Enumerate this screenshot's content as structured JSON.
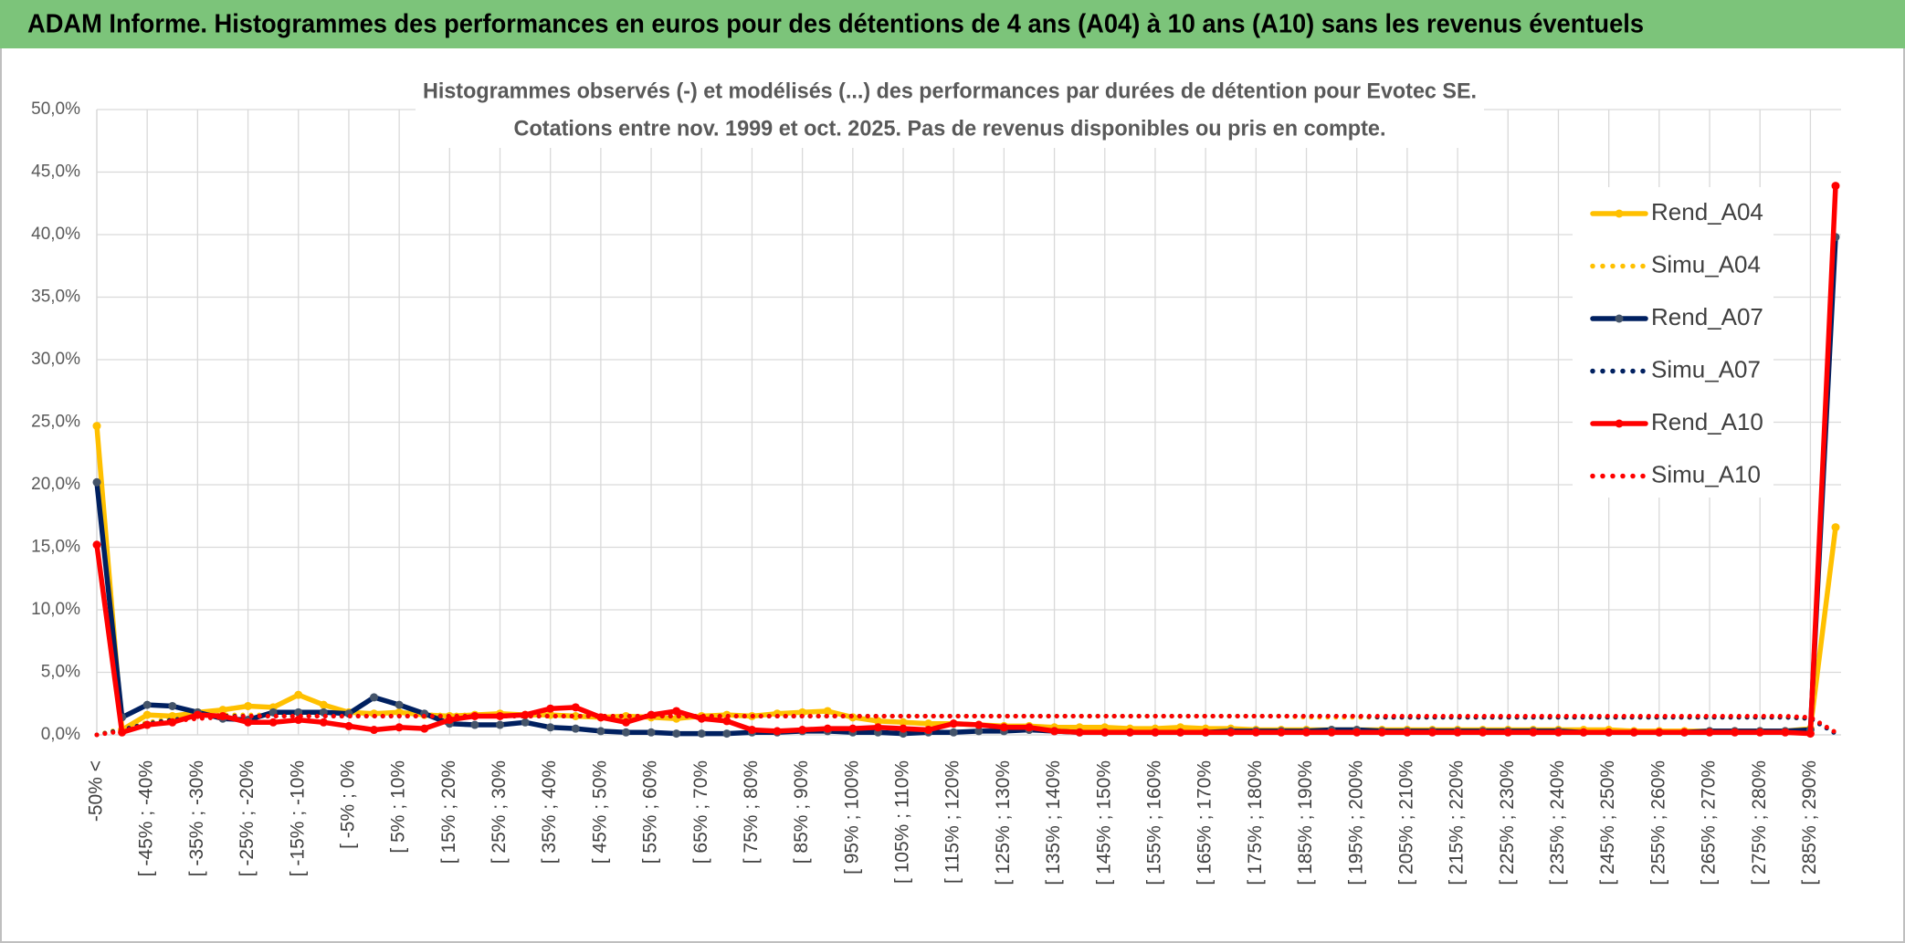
{
  "header": {
    "title": "ADAM Informe. Histogrammes des performances en euros pour des détentions de 4 ans (A04) à 10 ans (A10) sans les revenus éventuels"
  },
  "chart_data": {
    "type": "line",
    "title": "Histogrammes observés (-) et modélisés (...) des performances par durées de détention pour Evotec SE.",
    "subtitle": "Cotations entre nov. 1999 et oct. 2025. Pas de revenus disponibles ou pris en compte.",
    "categories": [
      "-50% <",
      null,
      "[ -45% ; -40%",
      null,
      "[ -35% ; -30%",
      null,
      "[ -25% ; -20%",
      null,
      "[ -15% ; -10%",
      null,
      "[ -5% ; 0%",
      null,
      "[ 5% ; 10%",
      null,
      "[ 15% ; 20%",
      null,
      "[ 25% ; 30%",
      null,
      "[ 35% ; 40%",
      null,
      "[ 45% ; 50%",
      null,
      "[ 55% ; 60%",
      null,
      "[ 65% ; 70%",
      null,
      "[ 75% ; 80%",
      null,
      "[ 85% ; 90%",
      null,
      "[ 95% ; 100%",
      null,
      "[ 105% ; 110%",
      null,
      "[ 115% ; 120%",
      null,
      "[ 125% ; 130%",
      null,
      "[ 135% ; 140%",
      null,
      "[ 145% ; 150%",
      null,
      "[ 155% ; 160%",
      null,
      "[ 165% ; 170%",
      null,
      "[ 175% ; 180%",
      null,
      "[ 185% ; 190%",
      null,
      "[ 195% ; 200%",
      null,
      "[ 205% ; 210%",
      null,
      "[ 215% ; 220%",
      null,
      "[ 225% ; 230%",
      null,
      "[ 235% ; 240%",
      null,
      "[ 245% ; 250%",
      null,
      "[ 255% ; 260%",
      null,
      "[ 265% ; 270%",
      null,
      "[ 275% ; 280%",
      null,
      "[ 285% ; 290%",
      null
    ],
    "series": [
      {
        "name": "Rend_A04",
        "color": "#FFC000",
        "style": "solid",
        "values": [
          24.7,
          0.4,
          1.6,
          1.5,
          1.8,
          2.0,
          2.3,
          2.2,
          3.2,
          2.4,
          1.8,
          1.7,
          1.8,
          1.6,
          1.5,
          1.6,
          1.7,
          1.6,
          1.6,
          1.5,
          1.4,
          1.5,
          1.4,
          1.3,
          1.5,
          1.6,
          1.5,
          1.7,
          1.8,
          1.9,
          1.4,
          1.1,
          1.0,
          0.9,
          0.9,
          0.8,
          0.7,
          0.7,
          0.6,
          0.6,
          0.6,
          0.5,
          0.5,
          0.6,
          0.5,
          0.5,
          0.4,
          0.4,
          0.4,
          0.4,
          0.4,
          0.4,
          0.4,
          0.4,
          0.4,
          0.4,
          0.4,
          0.4,
          0.4,
          0.4,
          0.4,
          0.3,
          0.3,
          0.3,
          0.3,
          0.3,
          0.3,
          0.3,
          0.5,
          16.6
        ]
      },
      {
        "name": "Simu_A04",
        "color": "#FFC000",
        "style": "dotted",
        "values": [
          0.0,
          0.5,
          1.0,
          1.3,
          1.5,
          1.6,
          1.6,
          1.6,
          1.6,
          1.6,
          1.6,
          1.6,
          1.6,
          1.6,
          1.6,
          1.6,
          1.6,
          1.5,
          1.5,
          1.5,
          1.5,
          1.5,
          1.5,
          1.5,
          1.5,
          1.5,
          1.5,
          1.5,
          1.5,
          1.5,
          1.5,
          1.5,
          1.5,
          1.5,
          1.5,
          1.5,
          1.5,
          1.5,
          1.5,
          1.5,
          1.5,
          1.5,
          1.5,
          1.5,
          1.5,
          1.5,
          1.5,
          1.5,
          1.4,
          1.4,
          1.4,
          1.4,
          1.4,
          1.4,
          1.4,
          1.4,
          1.4,
          1.4,
          1.4,
          1.4,
          1.4,
          1.4,
          1.4,
          1.4,
          1.4,
          1.4,
          1.4,
          1.4,
          1.3,
          0.2
        ]
      },
      {
        "name": "Rend_A07",
        "color": "#002060",
        "marker": "#44546A",
        "style": "solid",
        "values": [
          20.2,
          1.4,
          2.4,
          2.3,
          1.8,
          1.3,
          1.2,
          1.8,
          1.8,
          1.8,
          1.7,
          3.0,
          2.4,
          1.7,
          0.9,
          0.8,
          0.8,
          1.0,
          0.6,
          0.5,
          0.3,
          0.2,
          0.2,
          0.1,
          0.1,
          0.1,
          0.2,
          0.2,
          0.3,
          0.3,
          0.2,
          0.2,
          0.1,
          0.2,
          0.2,
          0.3,
          0.3,
          0.4,
          0.3,
          0.2,
          0.2,
          0.2,
          0.2,
          0.2,
          0.2,
          0.3,
          0.3,
          0.3,
          0.3,
          0.4,
          0.4,
          0.3,
          0.3,
          0.3,
          0.3,
          0.3,
          0.3,
          0.3,
          0.3,
          0.2,
          0.2,
          0.2,
          0.2,
          0.2,
          0.3,
          0.3,
          0.3,
          0.3,
          0.4,
          39.8
        ]
      },
      {
        "name": "Simu_A07",
        "color": "#002060",
        "style": "dotted",
        "values": [
          0.0,
          0.4,
          0.9,
          1.2,
          1.4,
          1.5,
          1.5,
          1.5,
          1.5,
          1.5,
          1.5,
          1.5,
          1.5,
          1.5,
          1.5,
          1.5,
          1.5,
          1.5,
          1.5,
          1.5,
          1.5,
          1.5,
          1.5,
          1.5,
          1.5,
          1.5,
          1.5,
          1.5,
          1.5,
          1.5,
          1.5,
          1.5,
          1.5,
          1.5,
          1.5,
          1.5,
          1.5,
          1.5,
          1.5,
          1.5,
          1.5,
          1.5,
          1.5,
          1.5,
          1.5,
          1.5,
          1.5,
          1.5,
          1.5,
          1.5,
          1.5,
          1.4,
          1.4,
          1.4,
          1.4,
          1.4,
          1.4,
          1.4,
          1.4,
          1.4,
          1.4,
          1.4,
          1.4,
          1.4,
          1.4,
          1.4,
          1.4,
          1.4,
          1.3,
          0.1
        ]
      },
      {
        "name": "Rend_A10",
        "color": "#FF0000",
        "style": "solid",
        "values": [
          15.2,
          0.2,
          0.8,
          1.0,
          1.6,
          1.5,
          1.0,
          1.0,
          1.2,
          1.0,
          0.7,
          0.4,
          0.6,
          0.5,
          1.2,
          1.5,
          1.5,
          1.6,
          2.1,
          2.2,
          1.4,
          1.0,
          1.6,
          1.9,
          1.3,
          1.1,
          0.4,
          0.3,
          0.4,
          0.5,
          0.5,
          0.6,
          0.5,
          0.4,
          0.9,
          0.8,
          0.6,
          0.6,
          0.3,
          0.2,
          0.2,
          0.2,
          0.2,
          0.2,
          0.2,
          0.2,
          0.2,
          0.2,
          0.2,
          0.2,
          0.2,
          0.2,
          0.2,
          0.2,
          0.2,
          0.2,
          0.2,
          0.2,
          0.2,
          0.2,
          0.2,
          0.2,
          0.2,
          0.2,
          0.2,
          0.2,
          0.2,
          0.2,
          0.1,
          43.9
        ]
      },
      {
        "name": "Simu_A10",
        "color": "#FF0000",
        "style": "dotted",
        "values": [
          0.0,
          0.3,
          0.8,
          1.1,
          1.3,
          1.4,
          1.5,
          1.5,
          1.5,
          1.5,
          1.5,
          1.5,
          1.5,
          1.5,
          1.5,
          1.5,
          1.5,
          1.5,
          1.5,
          1.5,
          1.5,
          1.5,
          1.5,
          1.5,
          1.5,
          1.5,
          1.5,
          1.5,
          1.5,
          1.5,
          1.5,
          1.5,
          1.5,
          1.5,
          1.5,
          1.5,
          1.5,
          1.5,
          1.5,
          1.5,
          1.5,
          1.5,
          1.5,
          1.5,
          1.5,
          1.5,
          1.5,
          1.5,
          1.5,
          1.5,
          1.5,
          1.5,
          1.5,
          1.5,
          1.5,
          1.5,
          1.5,
          1.5,
          1.5,
          1.5,
          1.5,
          1.5,
          1.5,
          1.5,
          1.5,
          1.5,
          1.5,
          1.5,
          1.4,
          0.2
        ]
      }
    ],
    "ylim": [
      0,
      50
    ],
    "yticks": [
      {
        "value": 0,
        "label": "0,0%"
      },
      {
        "value": 5,
        "label": "5,0%"
      },
      {
        "value": 10,
        "label": "10,0%"
      },
      {
        "value": 15,
        "label": "15,0%"
      },
      {
        "value": 20,
        "label": "20,0%"
      },
      {
        "value": 25,
        "label": "25,0%"
      },
      {
        "value": 30,
        "label": "30,0%"
      },
      {
        "value": 35,
        "label": "35,0%"
      },
      {
        "value": 40,
        "label": "40,0%"
      },
      {
        "value": 45,
        "label": "45,0%"
      },
      {
        "value": 50,
        "label": "50,0%"
      }
    ],
    "grid": true,
    "legend": "right"
  }
}
